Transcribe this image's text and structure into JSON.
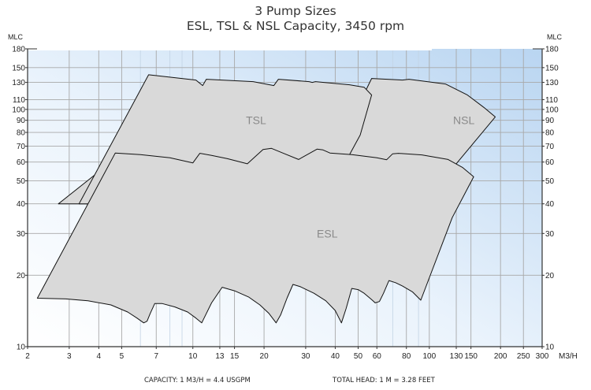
{
  "chart_data": {
    "type": "area",
    "title": "3 Pump Sizes",
    "subtitle": "ESL, TSL & NSL Capacity, 3450 rpm",
    "xlabel": "M3/H",
    "ylabel_left": "MLC",
    "ylabel_right": "MLC",
    "x_scale": "log",
    "y_scale": "log",
    "xlim": [
      2,
      300
    ],
    "ylim": [
      10,
      180
    ],
    "x_ticks": [
      2,
      3,
      4,
      5,
      7,
      10,
      13,
      15,
      20,
      30,
      40,
      50,
      60,
      80,
      100,
      130,
      150,
      200,
      250,
      300
    ],
    "y_ticks": [
      10,
      20,
      30,
      40,
      50,
      60,
      70,
      80,
      90,
      100,
      110,
      130,
      150,
      180
    ],
    "grid": true,
    "footnotes": [
      "CAPACITY: 1 M3/H = 4.4 USGPM",
      "TOTAL HEAD: 1 M = 3.28 FEET"
    ],
    "series": [
      {
        "name": "NSL",
        "fill": "#d9d9d9",
        "points": [
          [
            2.7,
            40
          ],
          [
            4.7,
            62
          ],
          [
            39,
            62
          ],
          [
            57,
            135
          ],
          [
            77,
            133
          ],
          [
            82,
            134
          ],
          [
            117,
            128
          ],
          [
            145,
            115
          ],
          [
            170,
            102
          ],
          [
            190,
            93
          ],
          [
            88,
            37
          ],
          [
            52,
            36.5
          ],
          [
            10,
            40
          ]
        ]
      },
      {
        "name": "TSL",
        "fill": "#d9d9d9",
        "points": [
          [
            3.3,
            40
          ],
          [
            6.5,
            140
          ],
          [
            10.3,
            133
          ],
          [
            11,
            126
          ],
          [
            11.4,
            134
          ],
          [
            18,
            131
          ],
          [
            22,
            126
          ],
          [
            23,
            134
          ],
          [
            31,
            131
          ],
          [
            32,
            130
          ],
          [
            33,
            131
          ],
          [
            46,
            127
          ],
          [
            53,
            124
          ],
          [
            57,
            115
          ],
          [
            51,
            78
          ],
          [
            45,
            62
          ],
          [
            4.4,
            40
          ]
        ]
      },
      {
        "name": "ESL",
        "fill": "#d9d9d9",
        "points": [
          [
            2.2,
            16
          ],
          [
            2.9,
            15.9
          ],
          [
            3.6,
            15.6
          ],
          [
            4.5,
            15
          ],
          [
            5.3,
            14
          ],
          [
            5.8,
            13.2
          ],
          [
            6.2,
            12.6
          ],
          [
            6.4,
            12.8
          ],
          [
            6.6,
            13.8
          ],
          [
            6.9,
            15.2
          ],
          [
            7.4,
            15.2
          ],
          [
            8.4,
            14.7
          ],
          [
            9.5,
            14
          ],
          [
            10.3,
            13.2
          ],
          [
            10.9,
            12.6
          ],
          [
            11.2,
            13.3
          ],
          [
            12,
            15.3
          ],
          [
            13.3,
            17.8
          ],
          [
            15,
            17.2
          ],
          [
            17.2,
            16.2
          ],
          [
            19.2,
            15
          ],
          [
            21,
            13.8
          ],
          [
            22.5,
            12.6
          ],
          [
            23.5,
            13.6
          ],
          [
            25,
            16
          ],
          [
            26.5,
            18.3
          ],
          [
            28.5,
            17.9
          ],
          [
            32.5,
            16.8
          ],
          [
            36.5,
            15.6
          ],
          [
            40,
            14.2
          ],
          [
            42.5,
            12.6
          ],
          [
            44.5,
            14.5
          ],
          [
            47,
            17.6
          ],
          [
            50,
            17.4
          ],
          [
            53,
            16.8
          ],
          [
            57,
            15.8
          ],
          [
            59,
            15.3
          ],
          [
            61.5,
            15.5
          ],
          [
            64,
            16.8
          ],
          [
            67.5,
            19
          ],
          [
            72,
            18.6
          ],
          [
            77,
            18
          ],
          [
            85,
            17
          ],
          [
            92,
            15.7
          ],
          [
            125,
            35
          ],
          [
            154,
            52
          ],
          [
            138,
            57
          ],
          [
            120,
            61.5
          ],
          [
            93,
            64.3
          ],
          [
            74,
            65.3
          ],
          [
            70,
            65
          ],
          [
            66,
            61.4
          ],
          [
            60,
            62.5
          ],
          [
            50,
            64
          ],
          [
            47,
            64.5
          ],
          [
            38,
            65.5
          ],
          [
            35.5,
            67.5
          ],
          [
            33.5,
            68
          ],
          [
            28,
            61.5
          ],
          [
            24,
            65.5
          ],
          [
            21.5,
            68.5
          ],
          [
            19.8,
            67.8
          ],
          [
            17,
            59
          ],
          [
            14,
            62
          ],
          [
            12,
            64
          ],
          [
            10.7,
            65.3
          ],
          [
            10,
            59.5
          ],
          [
            8,
            62.5
          ],
          [
            6,
            64.5
          ],
          [
            4.7,
            65.5
          ]
        ]
      }
    ]
  }
}
